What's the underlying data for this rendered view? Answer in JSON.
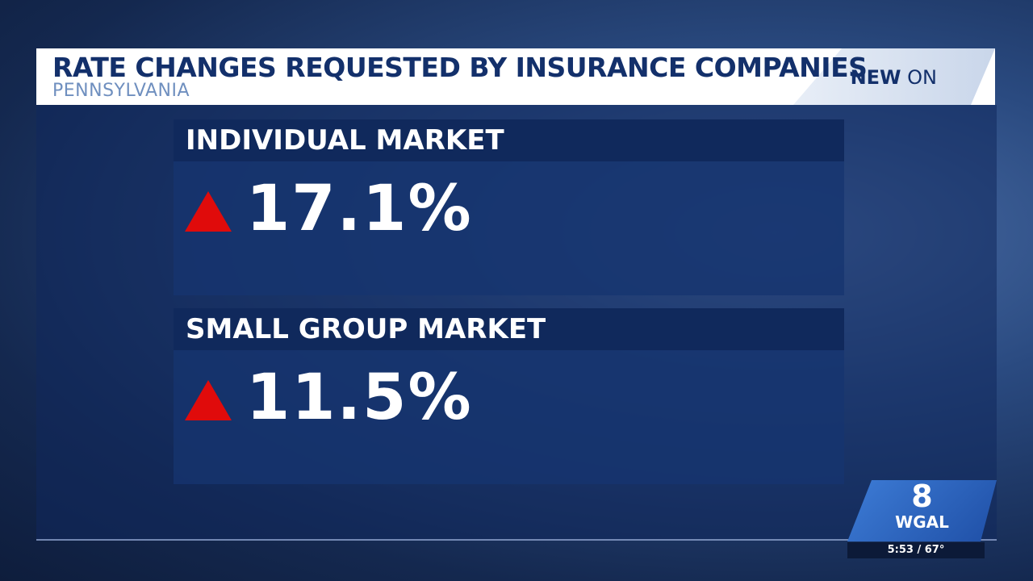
{
  "header": {
    "title": "RATE CHANGES REQUESTED BY INSURANCE COMPANIES",
    "subtitle": "PENNSYLVANIA",
    "badge": {
      "new": "NEW",
      "on": "ON"
    }
  },
  "panels": [
    {
      "label": "INDIVIDUAL MARKET",
      "value": "17.1%"
    },
    {
      "label": "SMALL GROUP MARKET",
      "value": "11.5%"
    }
  ],
  "station": {
    "channel": "8",
    "call_sign": "WGAL",
    "time_temp": "5:53 / 67°"
  }
}
